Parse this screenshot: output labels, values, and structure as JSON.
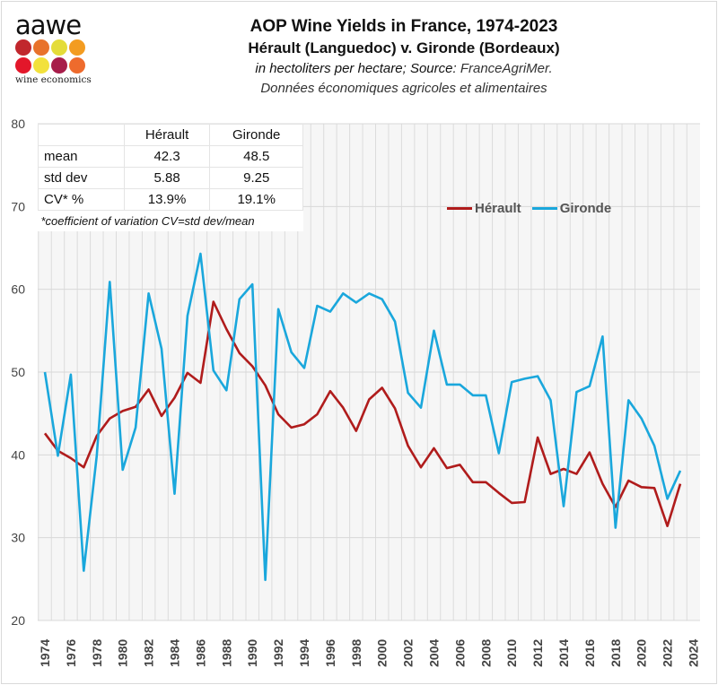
{
  "logo": {
    "word": "aawe",
    "subtitle": "wine economics",
    "dot_colors": [
      "#c1272d",
      "#e8722b",
      "#e4dc3a",
      "#f39c21",
      "#e3172a",
      "#f2e13c",
      "#a71d4a",
      "#ee6b2d"
    ]
  },
  "header": {
    "title": "AOP Wine Yields in France, 1974-2023",
    "subtitle": "Hérault (Languedoc) v. Gironde (Bordeaux)",
    "units": "in hectoliters per hectare; Source: ",
    "source": "FranceAgriMer.",
    "source_line2": "Données économiques agricoles et alimentaires"
  },
  "stats_table": {
    "columns": [
      "",
      "Hérault",
      "Gironde"
    ],
    "rows": [
      {
        "label": "mean",
        "herault": "42.3",
        "gironde": "48.5"
      },
      {
        "label": "std dev",
        "herault": "5.88",
        "gironde": "9.25"
      },
      {
        "label": "CV* %",
        "herault": "13.9%",
        "gironde": "19.1%"
      }
    ],
    "footnote": "*coefficient of variation CV=std dev/mean"
  },
  "chart_data": {
    "type": "line",
    "title": "AOP Wine Yields in France, 1974-2023",
    "xlabel": "",
    "ylabel": "hectoliters per hectare",
    "ylim": [
      20,
      80
    ],
    "xlim": [
      1974,
      2024
    ],
    "y_ticks": [
      20,
      30,
      40,
      50,
      60,
      70,
      80
    ],
    "x_ticks": [
      1974,
      1976,
      1978,
      1980,
      1982,
      1984,
      1986,
      1988,
      1990,
      1992,
      1994,
      1996,
      1998,
      2000,
      2002,
      2004,
      2006,
      2008,
      2010,
      2012,
      2014,
      2016,
      2018,
      2020,
      2022,
      2024
    ],
    "grid": true,
    "legend_position": "upper-right",
    "x": [
      1974,
      1975,
      1976,
      1977,
      1978,
      1979,
      1980,
      1981,
      1982,
      1983,
      1984,
      1985,
      1986,
      1987,
      1988,
      1989,
      1990,
      1991,
      1992,
      1993,
      1994,
      1995,
      1996,
      1997,
      1998,
      1999,
      2000,
      2001,
      2002,
      2003,
      2004,
      2005,
      2006,
      2007,
      2008,
      2009,
      2010,
      2011,
      2012,
      2013,
      2014,
      2015,
      2016,
      2017,
      2018,
      2019,
      2020,
      2021,
      2022,
      2023
    ],
    "series": [
      {
        "name": "Hérault",
        "color": "#b01c1c",
        "values": [
          42.6,
          40.5,
          39.6,
          38.5,
          42.3,
          44.4,
          45.3,
          45.8,
          47.9,
          44.7,
          46.9,
          49.9,
          48.7,
          58.5,
          55.2,
          52.3,
          50.7,
          48.4,
          44.9,
          43.3,
          43.7,
          44.9,
          47.7,
          45.7,
          42.9,
          46.7,
          48.1,
          45.6,
          41.1,
          38.5,
          40.8,
          38.4,
          38.8,
          36.7,
          36.7,
          35.4,
          34.2,
          34.3,
          42.1,
          37.7,
          38.3,
          37.7,
          40.3,
          36.5,
          33.7,
          36.9,
          36.1,
          36.0,
          31.4,
          36.5
        ]
      },
      {
        "name": "Gironde",
        "color": "#1aa7dc",
        "values": [
          50.0,
          39.9,
          49.7,
          26.0,
          39.9,
          60.9,
          38.2,
          43.3,
          59.5,
          52.8,
          35.3,
          56.8,
          64.3,
          50.2,
          47.8,
          58.8,
          60.6,
          24.9,
          57.6,
          52.4,
          50.5,
          58.0,
          57.3,
          59.5,
          58.4,
          59.5,
          58.8,
          56.1,
          47.5,
          45.7,
          55.0,
          48.5,
          48.5,
          47.2,
          47.2,
          40.2,
          48.8,
          49.2,
          49.5,
          46.6,
          33.8,
          47.6,
          48.3,
          54.3,
          31.2,
          46.6,
          44.4,
          41.1,
          34.7,
          38.1
        ]
      }
    ]
  }
}
